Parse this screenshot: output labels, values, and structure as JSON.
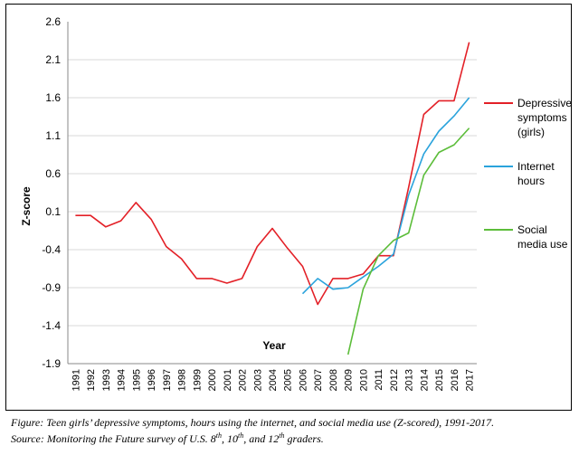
{
  "chart_data": {
    "type": "line",
    "xlabel": "Year",
    "ylabel": "Z-score",
    "ylim": [
      -1.9,
      2.6
    ],
    "y_ticks": [
      "2.6",
      "2.1",
      "1.6",
      "1.1",
      "0.6",
      "0.1",
      "-0.4",
      "-0.9",
      "-1.4",
      "-1.9"
    ],
    "categories": [
      "1991",
      "1992",
      "1993",
      "1994",
      "1995",
      "1996",
      "1997",
      "1998",
      "1999",
      "2000",
      "2001",
      "2002",
      "2003",
      "2004",
      "2005",
      "2006",
      "2007",
      "2008",
      "2009",
      "2010",
      "2011",
      "2012",
      "2013",
      "2014",
      "2015",
      "2016",
      "2017"
    ],
    "grid": "horizontal",
    "legend_position": "right",
    "series": [
      {
        "name": "Depressive symptoms (girls)",
        "legend_lines": [
          "Depressive",
          "symptoms",
          "(girls)"
        ],
        "color": "#e32027",
        "values": [
          0.05,
          0.05,
          -0.1,
          -0.02,
          0.22,
          0.0,
          -0.36,
          -0.52,
          -0.78,
          -0.78,
          -0.84,
          -0.78,
          -0.36,
          -0.12,
          -0.38,
          -0.62,
          -1.12,
          -0.78,
          -0.78,
          -0.72,
          -0.48,
          -0.48,
          0.42,
          1.38,
          1.56,
          1.56,
          2.33
        ]
      },
      {
        "name": "Internet hours",
        "legend_lines": [
          "Internet",
          "hours"
        ],
        "color": "#2aa3dc",
        "values": [
          null,
          null,
          null,
          null,
          null,
          null,
          null,
          null,
          null,
          null,
          null,
          null,
          null,
          null,
          null,
          -0.98,
          -0.78,
          -0.92,
          -0.9,
          -0.76,
          -0.62,
          -0.46,
          0.32,
          0.86,
          1.16,
          1.36,
          1.6
        ]
      },
      {
        "name": "Social media use",
        "legend_lines": [
          "Social",
          "media use"
        ],
        "color": "#5cbd3a",
        "values": [
          null,
          null,
          null,
          null,
          null,
          null,
          null,
          null,
          null,
          null,
          null,
          null,
          null,
          null,
          null,
          null,
          null,
          null,
          -1.78,
          -0.92,
          -0.48,
          -0.28,
          -0.18,
          0.58,
          0.88,
          0.98,
          1.2
        ]
      }
    ]
  },
  "caption": {
    "line1": "Figure: Teen girls’ depressive symptoms, hours using the internet, and social media use (Z-scored), 1991-2017.",
    "line2": "Source: Monitoring the Future survey of U.S. 8th, 10th, and 12th graders."
  }
}
